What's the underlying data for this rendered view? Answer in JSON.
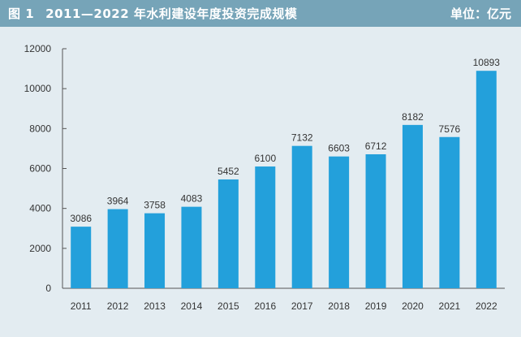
{
  "header": {
    "figure_label": "图 1",
    "title": "2011—2022 年水利建设年度投资完成规模",
    "unit": "单位：亿元"
  },
  "colors": {
    "header_bg": "#76a4b8",
    "plot_bg": "#e3ecf1",
    "bar": "#23a0db",
    "axis": "#555555"
  },
  "chart_data": {
    "type": "bar",
    "title": "2011—2022 年水利建设年度投资完成规模",
    "unit": "单位：亿元",
    "categories": [
      "2011",
      "2012",
      "2013",
      "2014",
      "2015",
      "2016",
      "2017",
      "2018",
      "2019",
      "2020",
      "2021",
      "2022"
    ],
    "values": [
      3086,
      3964,
      3758,
      4083,
      5452,
      6100,
      7132,
      6603,
      6712,
      8182,
      7576,
      10893
    ],
    "ylim": [
      0,
      12000
    ],
    "yticks": [
      0,
      2000,
      4000,
      6000,
      8000,
      10000,
      12000
    ],
    "grid": false,
    "legend": "none"
  }
}
